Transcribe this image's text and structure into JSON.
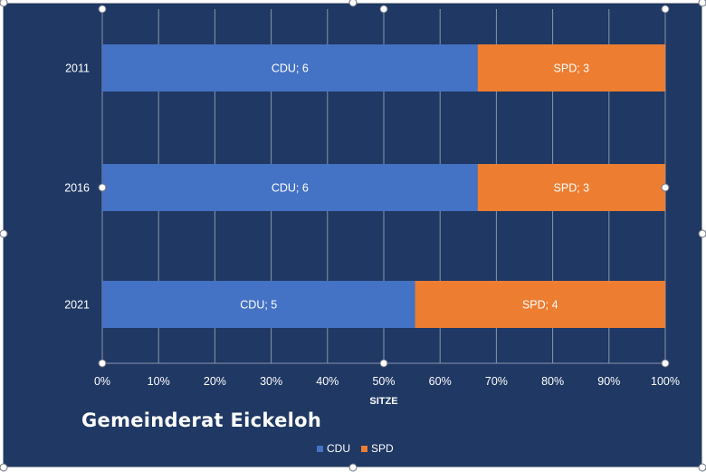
{
  "colors": {
    "background": "#1f3864",
    "cdu": "#4472c4",
    "spd": "#ed7d31",
    "grid": "#8a96ad",
    "text": "#ffffff"
  },
  "chart_data": {
    "type": "bar",
    "orientation": "horizontal",
    "stacked": "100%",
    "title": "Gemeinderat Eickeloh",
    "xlabel": "SITZE",
    "ylabel": "",
    "categories": [
      "2011",
      "2016",
      "2021"
    ],
    "series": [
      {
        "name": "CDU",
        "values": [
          6,
          6,
          5
        ],
        "labels": [
          "CDU; 6",
          "CDU; 6",
          "CDU; 5"
        ]
      },
      {
        "name": "SPD",
        "values": [
          3,
          3,
          4
        ],
        "labels": [
          "SPD; 3",
          "SPD; 3",
          "SPD; 4"
        ]
      }
    ],
    "xticks": [
      "0%",
      "10%",
      "20%",
      "30%",
      "40%",
      "50%",
      "60%",
      "70%",
      "80%",
      "90%",
      "100%"
    ],
    "xlim": [
      0,
      100
    ],
    "grid": true,
    "legend_position": "bottom"
  }
}
